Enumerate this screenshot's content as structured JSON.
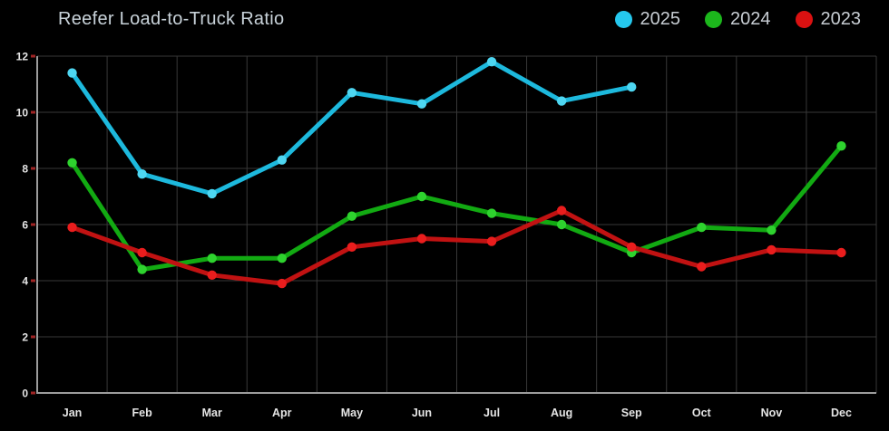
{
  "header": {
    "title": "Reefer Load-to-Truck Ratio"
  },
  "legend": {
    "items": [
      {
        "label": "2025",
        "color": "#25c8ee"
      },
      {
        "label": "2024",
        "color": "#1cb71c"
      },
      {
        "label": "2023",
        "color": "#da1111"
      }
    ]
  },
  "chart_data": {
    "type": "line",
    "title": "Reefer Load-to-Truck Ratio",
    "categories": [
      "Jan",
      "Feb",
      "Mar",
      "Apr",
      "May",
      "Jun",
      "Jul",
      "Aug",
      "Sep",
      "Oct",
      "Nov",
      "Dec"
    ],
    "series": [
      {
        "name": "2025",
        "color": "#1db9dd",
        "marker_color": "#4ed6f1",
        "values": [
          11.4,
          7.8,
          7.1,
          8.3,
          10.7,
          10.3,
          11.8,
          10.4,
          10.9,
          null,
          null,
          null
        ]
      },
      {
        "name": "2024",
        "color": "#12aa12",
        "marker_color": "#2ed32e",
        "values": [
          8.2,
          4.4,
          4.8,
          4.8,
          6.3,
          7.0,
          6.4,
          6.0,
          5.0,
          5.9,
          5.8,
          8.8
        ]
      },
      {
        "name": "2023",
        "color": "#c11212",
        "marker_color": "#ea1d1d",
        "values": [
          5.9,
          5.0,
          4.2,
          3.9,
          5.2,
          5.5,
          5.4,
          6.5,
          5.2,
          4.5,
          5.1,
          5.0
        ]
      }
    ],
    "xlabel": "",
    "ylabel": "",
    "ylim": [
      0,
      12
    ],
    "ytick_step": 2,
    "yticks": [
      0,
      2,
      4,
      6,
      8,
      10,
      12
    ],
    "grid": "on",
    "legend_position": "top-right",
    "background_color": "#000000",
    "axis_color": "#9c9c9c",
    "grid_color": "#383838",
    "tick_color": "#a02424",
    "label_color": "#e5e5e5"
  }
}
